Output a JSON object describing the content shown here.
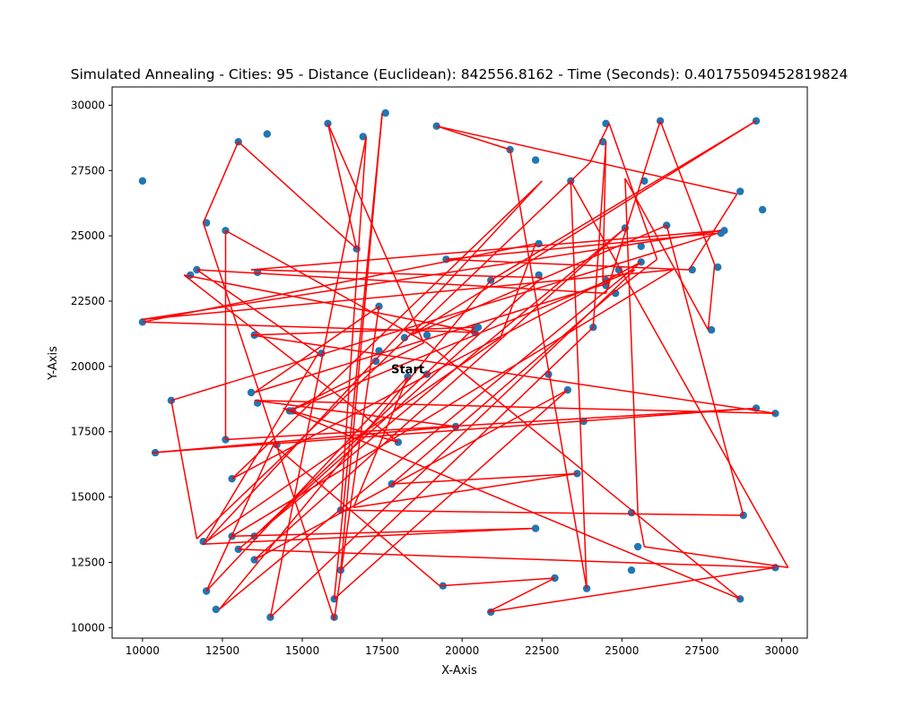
{
  "chart_data": {
    "type": "line",
    "title": "Simulated Annealing - Cities: 95 - Distance (Euclidean): 842556.8162 - Time (Seconds): 0.40175509452819824",
    "xlabel": "X-Axis",
    "ylabel": "Y-Axis",
    "xlim": [
      9050,
      30800
    ],
    "ylim": [
      9600,
      30700
    ],
    "xticks": [
      10000,
      12500,
      15000,
      17500,
      20000,
      22500,
      25000,
      27500,
      30000
    ],
    "yticks": [
      10000,
      12500,
      15000,
      17500,
      20000,
      22500,
      25000,
      27500,
      30000
    ],
    "xtick_labels": [
      "10000",
      "12500",
      "15000",
      "17500",
      "20000",
      "22500",
      "25000",
      "27500",
      "30000"
    ],
    "ytick_labels": [
      "10000",
      "12500",
      "15000",
      "17500",
      "20000",
      "22500",
      "25000",
      "27500",
      "30000"
    ],
    "grid": false,
    "start_label": "Start",
    "start_point": [
      18300,
      19600
    ],
    "route": [
      [
        18300,
        19600
      ],
      [
        12000,
        11400
      ],
      [
        14100,
        17000
      ],
      [
        19300,
        11600
      ],
      [
        22900,
        11900
      ],
      [
        20800,
        10600
      ],
      [
        29800,
        12300
      ],
      [
        13000,
        13000
      ],
      [
        25100,
        25300
      ],
      [
        13500,
        12600
      ],
      [
        23300,
        19100
      ],
      [
        16000,
        11100
      ],
      [
        17500,
        29700
      ],
      [
        16200,
        12200
      ],
      [
        24100,
        21500
      ],
      [
        24500,
        28600
      ],
      [
        24400,
        23300
      ],
      [
        24600,
        23200
      ],
      [
        13500,
        19000
      ],
      [
        17400,
        22300
      ],
      [
        16000,
        10300
      ],
      [
        11900,
        25500
      ],
      [
        13000,
        28600
      ],
      [
        16700,
        24500
      ],
      [
        15800,
        29300
      ],
      [
        18800,
        20900
      ],
      [
        14600,
        18300
      ],
      [
        25400,
        23700
      ],
      [
        14000,
        10400
      ],
      [
        17000,
        28800
      ],
      [
        16200,
        14500
      ],
      [
        28800,
        14300
      ],
      [
        26400,
        25400
      ],
      [
        18400,
        21200
      ],
      [
        29200,
        29400
      ],
      [
        20900,
        23300
      ],
      [
        12400,
        10700
      ],
      [
        25600,
        24000
      ],
      [
        12800,
        15700
      ],
      [
        22500,
        27100
      ],
      [
        12000,
        13300
      ],
      [
        21200,
        21100
      ],
      [
        22300,
        24700
      ],
      [
        10000,
        21700
      ],
      [
        20500,
        21300
      ],
      [
        11300,
        23500
      ],
      [
        18000,
        17100
      ],
      [
        14400,
        18400
      ],
      [
        28700,
        11100
      ],
      [
        18900,
        20900
      ],
      [
        12600,
        25200
      ],
      [
        12600,
        17200
      ],
      [
        29200,
        18400
      ],
      [
        10300,
        16700
      ],
      [
        19800,
        17700
      ],
      [
        13500,
        18700
      ],
      [
        29800,
        18200
      ],
      [
        13400,
        21200
      ],
      [
        20400,
        21500
      ],
      [
        13500,
        13500
      ],
      [
        22500,
        23400
      ],
      [
        13400,
        23700
      ],
      [
        28100,
        25200
      ],
      [
        10000,
        21800
      ],
      [
        26600,
        23700
      ],
      [
        12800,
        13500
      ],
      [
        22200,
        13800
      ],
      [
        11900,
        13200
      ],
      [
        15500,
        20500
      ],
      [
        11700,
        23700
      ],
      [
        24500,
        22800
      ],
      [
        26200,
        29400
      ],
      [
        27900,
        23900
      ],
      [
        27700,
        21400
      ],
      [
        25100,
        27200
      ],
      [
        25500,
        14400
      ],
      [
        25700,
        13100
      ],
      [
        30200,
        12300
      ],
      [
        23400,
        27100
      ],
      [
        23900,
        11500
      ],
      [
        21500,
        28300
      ],
      [
        19200,
        29200
      ],
      [
        28600,
        26600
      ],
      [
        27100,
        23700
      ],
      [
        19500,
        24100
      ],
      [
        28000,
        25100
      ],
      [
        10900,
        18700
      ],
      [
        11700,
        13400
      ],
      [
        24000,
        27800
      ],
      [
        24600,
        29300
      ],
      [
        26100,
        24100
      ],
      [
        24600,
        22700
      ],
      [
        17800,
        15500
      ],
      [
        23600,
        15900
      ],
      [
        16600,
        14600
      ],
      [
        18300,
        19600
      ]
    ],
    "cities": [
      [
        10000,
        27100
      ],
      [
        12000,
        25500
      ],
      [
        13000,
        28600
      ],
      [
        13900,
        28900
      ],
      [
        15800,
        29300
      ],
      [
        17600,
        29700
      ],
      [
        19200,
        29200
      ],
      [
        21500,
        28300
      ],
      [
        22300,
        27900
      ],
      [
        23400,
        27100
      ],
      [
        24500,
        29300
      ],
      [
        26200,
        29400
      ],
      [
        25700,
        27100
      ],
      [
        28700,
        26700
      ],
      [
        29200,
        29400
      ],
      [
        29400,
        26000
      ],
      [
        28200,
        25200
      ],
      [
        28100,
        25100
      ],
      [
        26400,
        25400
      ],
      [
        25600,
        24600
      ],
      [
        25100,
        25300
      ],
      [
        24900,
        23700
      ],
      [
        24500,
        23300
      ],
      [
        24500,
        23100
      ],
      [
        24800,
        22800
      ],
      [
        25600,
        24000
      ],
      [
        27200,
        23700
      ],
      [
        28000,
        23800
      ],
      [
        27800,
        21400
      ],
      [
        22400,
        24700
      ],
      [
        22400,
        23500
      ],
      [
        19500,
        24100
      ],
      [
        20900,
        23300
      ],
      [
        20500,
        21500
      ],
      [
        20400,
        21300
      ],
      [
        18900,
        21200
      ],
      [
        18200,
        21100
      ],
      [
        17400,
        22300
      ],
      [
        17300,
        20200
      ],
      [
        17400,
        20600
      ],
      [
        18900,
        19700
      ],
      [
        22700,
        19700
      ],
      [
        23300,
        19100
      ],
      [
        23800,
        17900
      ],
      [
        24100,
        21500
      ],
      [
        16700,
        24500
      ],
      [
        13600,
        23600
      ],
      [
        11700,
        23700
      ],
      [
        11500,
        23500
      ],
      [
        10000,
        21700
      ],
      [
        13500,
        21200
      ],
      [
        15600,
        20500
      ],
      [
        10900,
        18700
      ],
      [
        13400,
        19000
      ],
      [
        13600,
        18600
      ],
      [
        14600,
        18300
      ],
      [
        12600,
        17200
      ],
      [
        10400,
        16700
      ],
      [
        14200,
        17000
      ],
      [
        18000,
        17100
      ],
      [
        19800,
        17700
      ],
      [
        29200,
        18400
      ],
      [
        29800,
        18200
      ],
      [
        12800,
        15700
      ],
      [
        17800,
        15500
      ],
      [
        23600,
        15900
      ],
      [
        16200,
        14500
      ],
      [
        28800,
        14300
      ],
      [
        25300,
        14400
      ],
      [
        22300,
        13800
      ],
      [
        12800,
        13500
      ],
      [
        13500,
        13500
      ],
      [
        11900,
        13300
      ],
      [
        13000,
        13000
      ],
      [
        13500,
        12600
      ],
      [
        16200,
        12200
      ],
      [
        25500,
        13100
      ],
      [
        25300,
        12200
      ],
      [
        19400,
        11600
      ],
      [
        22900,
        11900
      ],
      [
        23900,
        11500
      ],
      [
        29800,
        12300
      ],
      [
        28700,
        11100
      ],
      [
        20900,
        10600
      ],
      [
        16000,
        11100
      ],
      [
        12000,
        11400
      ],
      [
        12300,
        10700
      ],
      [
        14000,
        10400
      ],
      [
        16000,
        10400
      ],
      [
        12600,
        25200
      ],
      [
        16900,
        28800
      ],
      [
        24400,
        28600
      ],
      [
        18300,
        19600
      ],
      [
        20400,
        21500
      ],
      [
        14700,
        18300
      ]
    ]
  }
}
